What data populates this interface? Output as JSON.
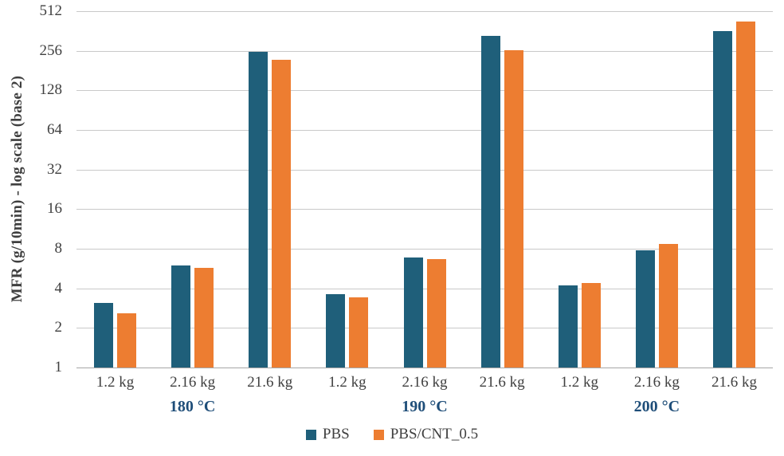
{
  "chart_data": {
    "type": "bar",
    "title": "",
    "xlabel": "",
    "ylabel": "MFR (g/10min) - log scale (base 2)",
    "scale": "log2",
    "ylim": [
      1,
      512
    ],
    "y_ticks": [
      1,
      2,
      4,
      8,
      16,
      32,
      64,
      128,
      256,
      512
    ],
    "grid": true,
    "legend_position": "bottom",
    "categories": [
      "1.2 kg",
      "2.16 kg",
      "21.6 kg",
      "1.2 kg",
      "2.16 kg",
      "21.6 kg",
      "1.2 kg",
      "2.16 kg",
      "21.6 kg"
    ],
    "group_labels": [
      "180 °C",
      "190 °C",
      "200 °C"
    ],
    "categories_per_group": 3,
    "series": [
      {
        "name": "PBS",
        "color": "#1f5f7a",
        "values": [
          3.1,
          6.0,
          250,
          3.6,
          6.9,
          330,
          4.2,
          7.8,
          360
        ]
      },
      {
        "name": "PBS/CNT_0.5",
        "color": "#ed7d31",
        "values": [
          2.6,
          5.7,
          220,
          3.4,
          6.7,
          260,
          4.4,
          8.7,
          430
        ]
      }
    ]
  },
  "colors": {
    "gridline": "#c9c9c9",
    "axis_line": "#a6a6a6",
    "tick_text": "#404040",
    "group_label_text": "#1f4e79",
    "y_axis_title_text": "#3f3f3f"
  }
}
